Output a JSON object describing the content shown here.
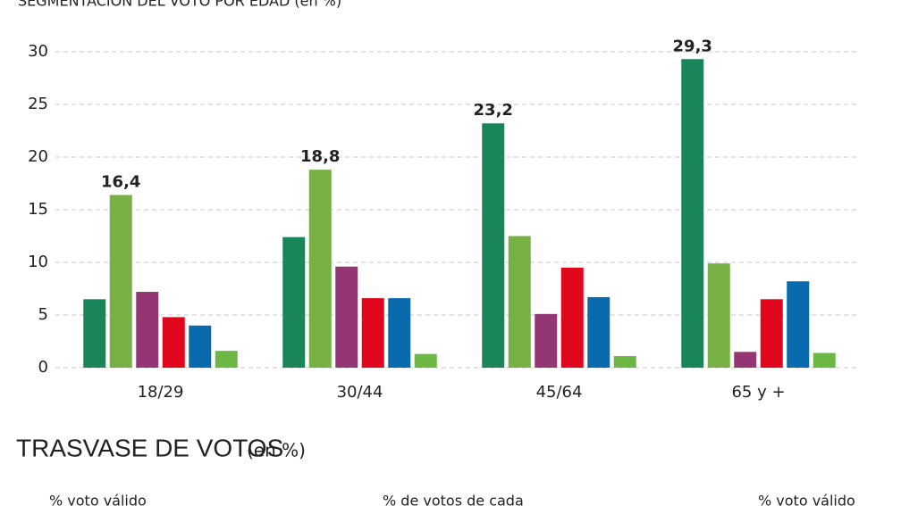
{
  "chart_data": {
    "type": "bar",
    "title": "SEGMENTACIÓN DEL VOTO POR EDAD (en %)",
    "categories": [
      "18/29",
      "30/44",
      "45/64",
      "65 y +"
    ],
    "series": [
      {
        "color": "#1a8558",
        "values": [
          6.5,
          12.4,
          23.2,
          29.3
        ],
        "value_labels": [
          null,
          null,
          "23,2",
          "29,3"
        ]
      },
      {
        "color": "#77b044",
        "values": [
          16.4,
          18.8,
          12.5,
          9.9
        ],
        "value_labels": [
          "16,4",
          "18,8",
          null,
          null
        ]
      },
      {
        "color": "#943673",
        "values": [
          7.2,
          9.6,
          5.1,
          1.5
        ]
      },
      {
        "color": "#e0061c",
        "values": [
          4.8,
          6.6,
          9.5,
          6.5
        ]
      },
      {
        "color": "#0a6aae",
        "values": [
          4.0,
          6.6,
          6.7,
          8.2
        ]
      },
      {
        "color": "#6db845",
        "values": [
          1.6,
          1.3,
          1.1,
          1.4
        ]
      }
    ],
    "ylim": [
      0,
      30
    ],
    "yticks": [
      0,
      5,
      10,
      15,
      20,
      25,
      30
    ],
    "grid": true
  },
  "next_section": {
    "title": "TRASVASE DE VOTOS",
    "title_note": "(en %)",
    "columns": [
      "% voto válido",
      "% de votos de cada",
      "% voto válido"
    ]
  }
}
